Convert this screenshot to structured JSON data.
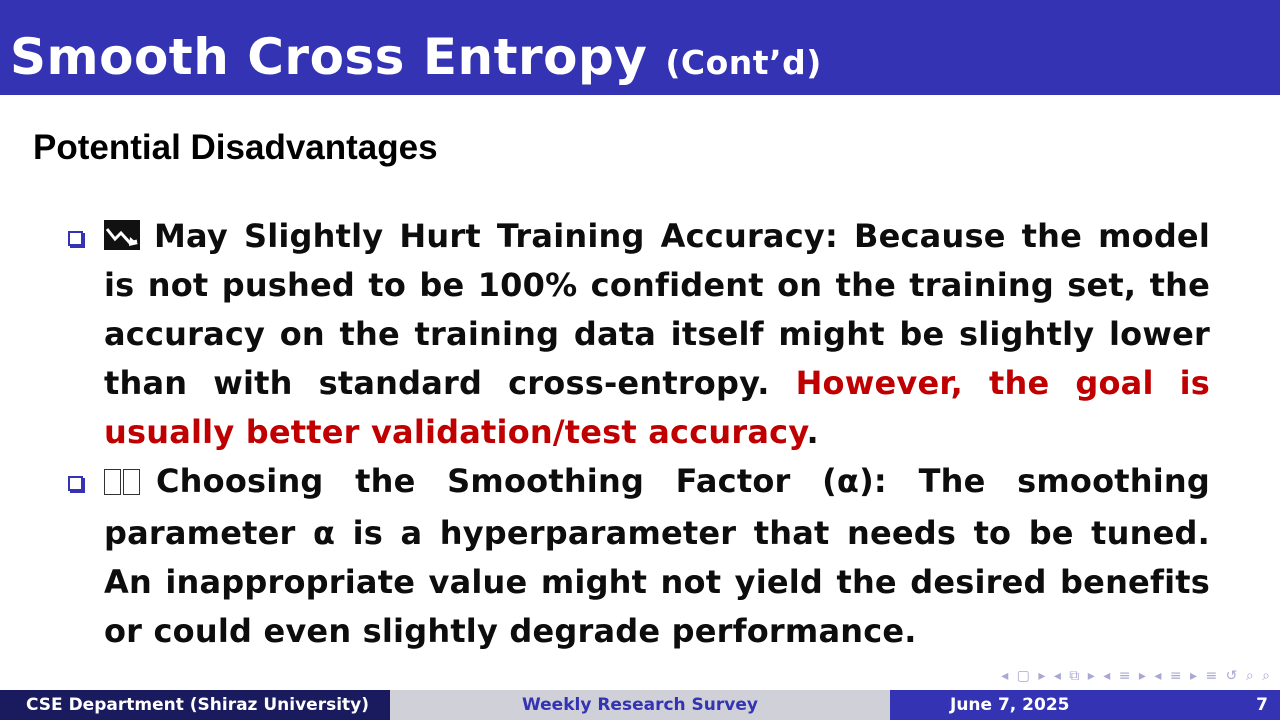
{
  "title": {
    "main": "Smooth Cross Entropy",
    "cont": "(Cont’d)"
  },
  "subtitle": "Potential Disadvantages",
  "bullets": [
    {
      "icon": "chart-decreasing-icon",
      "heading": "May Slightly Hurt Training Accuracy:",
      "body": "Because the model is not pushed to be 100% confident on the training set, the accuracy on the training data itself might be slightly lower than with standard cross-entropy.",
      "highlight": "However, the goal is usually better validation/test accuracy",
      "end": "."
    },
    {
      "icon": "missing-glyph-icon",
      "heading": "Choosing the Smoothing Factor (α):",
      "body": "The smoothing parameter α is a hyperparameter that needs to be tuned. An inappropriate value might not yield the desired benefits or could even slightly degrade performance."
    }
  ],
  "nav": {
    "symbols": "◂ ▢ ▸ ◂ ⧉ ▸ ◂ ≡ ▸ ◂ ≡ ▸   ≡   ↺ ⌕ ⌕"
  },
  "footer": {
    "left": "CSE Department (Shiraz University)",
    "center": "Weekly Research Survey",
    "date": "June 7, 2025",
    "page": "7"
  },
  "colors": {
    "primary": "#3333b3",
    "dark": "#1a1a5e",
    "footer_mid": "#d0d0d8",
    "highlight": "#c00000"
  }
}
